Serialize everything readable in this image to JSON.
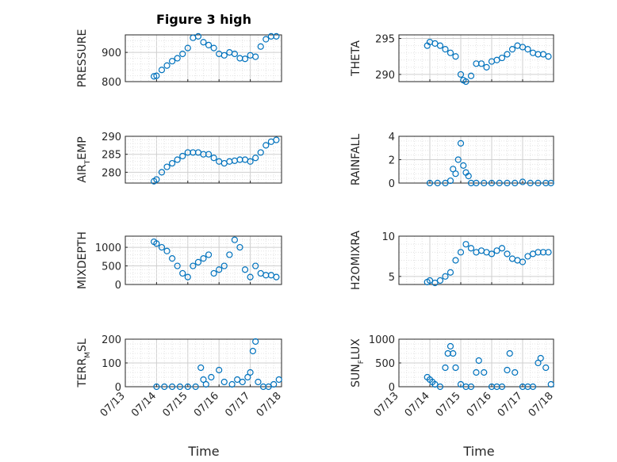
{
  "figure": {
    "title": "Figure 3 high",
    "xlabel": "Time"
  },
  "style": {
    "marker_color": "#0072BD",
    "axis_color": "#262626",
    "grid_color": "#b0b0b0"
  },
  "chart_data": [
    {
      "type": "scatter",
      "ylabel": "PRESSURE",
      "yticks": [
        800,
        900
      ],
      "ylim": [
        800,
        960
      ],
      "xlim": [
        "07/13",
        "07/18"
      ],
      "xticks": [
        "07/13",
        "07/14",
        "07/15",
        "07/16",
        "07/17",
        "07/18"
      ],
      "show_xticklabels": false,
      "grid": true,
      "series": [
        {
          "x": [
            "07/13 22:00",
            "07/14 00:00",
            "07/14 04:00",
            "07/14 08:00",
            "07/14 12:00",
            "07/14 16:00",
            "07/14 20:00",
            "07/15 00:00",
            "07/15 04:00",
            "07/15 08:00",
            "07/15 12:00",
            "07/15 16:00",
            "07/15 20:00",
            "07/16 00:00",
            "07/16 04:00",
            "07/16 08:00",
            "07/16 12:00",
            "07/16 16:00",
            "07/16 20:00",
            "07/17 00:00",
            "07/17 04:00",
            "07/17 08:00",
            "07/17 12:00",
            "07/17 16:00",
            "07/17 20:00"
          ],
          "y": [
            818,
            820,
            840,
            855,
            870,
            880,
            895,
            915,
            950,
            955,
            935,
            925,
            915,
            895,
            890,
            900,
            895,
            880,
            878,
            890,
            885,
            920,
            945,
            955,
            955
          ]
        }
      ]
    },
    {
      "type": "scatter",
      "ylabel": "THETA",
      "yticks": [
        290,
        295
      ],
      "ylim": [
        289,
        295.5
      ],
      "xlim": [
        "07/13",
        "07/18"
      ],
      "xticks": [
        "07/13",
        "07/14",
        "07/15",
        "07/16",
        "07/17",
        "07/18"
      ],
      "show_xticklabels": false,
      "grid": true,
      "series": [
        {
          "x": [
            "07/13 22:00",
            "07/14 00:00",
            "07/14 04:00",
            "07/14 08:00",
            "07/14 12:00",
            "07/14 16:00",
            "07/14 20:00",
            "07/15 00:00",
            "07/15 02:00",
            "07/15 04:00",
            "07/15 08:00",
            "07/15 12:00",
            "07/15 16:00",
            "07/15 20:00",
            "07/16 00:00",
            "07/16 04:00",
            "07/16 08:00",
            "07/16 12:00",
            "07/16 16:00",
            "07/16 20:00",
            "07/17 00:00",
            "07/17 04:00",
            "07/17 08:00",
            "07/17 12:00",
            "07/17 16:00",
            "07/17 20:00"
          ],
          "y": [
            294,
            294.5,
            294.3,
            294,
            293.5,
            293,
            292.5,
            290,
            289.2,
            289,
            289.8,
            291.5,
            291.5,
            291,
            291.8,
            292,
            292.3,
            292.8,
            293.5,
            294,
            293.8,
            293.5,
            293,
            292.8,
            292.8,
            292.5
          ]
        }
      ]
    },
    {
      "type": "scatter",
      "ylabel": "AIR_TEMP",
      "yticks": [
        280,
        285,
        290
      ],
      "ylim": [
        277,
        290
      ],
      "xlim": [
        "07/13",
        "07/18"
      ],
      "xticks": [
        "07/13",
        "07/14",
        "07/15",
        "07/16",
        "07/17",
        "07/18"
      ],
      "show_xticklabels": false,
      "grid": true,
      "series": [
        {
          "x": [
            "07/13 22:00",
            "07/14 00:00",
            "07/14 04:00",
            "07/14 08:00",
            "07/14 12:00",
            "07/14 16:00",
            "07/14 20:00",
            "07/15 00:00",
            "07/15 04:00",
            "07/15 08:00",
            "07/15 12:00",
            "07/15 16:00",
            "07/15 20:00",
            "07/16 00:00",
            "07/16 04:00",
            "07/16 08:00",
            "07/16 12:00",
            "07/16 16:00",
            "07/16 20:00",
            "07/17 00:00",
            "07/17 04:00",
            "07/17 08:00",
            "07/17 12:00",
            "07/17 16:00",
            "07/17 20:00"
          ],
          "y": [
            277.5,
            278,
            280,
            281.5,
            282.5,
            283.5,
            284.5,
            285.5,
            285.5,
            285.5,
            285,
            285,
            284,
            283,
            282.5,
            283,
            283.2,
            283.5,
            283.5,
            283,
            284,
            285.5,
            287.5,
            288.5,
            289
          ]
        }
      ]
    },
    {
      "type": "scatter",
      "ylabel": "RAINFALL",
      "yticks": [
        0,
        2,
        4
      ],
      "ylim": [
        0,
        4
      ],
      "xlim": [
        "07/13",
        "07/18"
      ],
      "xticks": [
        "07/13",
        "07/14",
        "07/15",
        "07/16",
        "07/17",
        "07/18"
      ],
      "show_xticklabels": false,
      "grid": true,
      "series": [
        {
          "x": [
            "07/14 00:00",
            "07/14 06:00",
            "07/14 12:00",
            "07/14 16:00",
            "07/14 18:00",
            "07/14 20:00",
            "07/14 22:00",
            "07/15 00:00",
            "07/15 02:00",
            "07/15 04:00",
            "07/15 06:00",
            "07/15 08:00",
            "07/15 12:00",
            "07/15 18:00",
            "07/16 00:00",
            "07/16 06:00",
            "07/16 12:00",
            "07/16 18:00",
            "07/17 00:00",
            "07/17 06:00",
            "07/17 12:00",
            "07/17 18:00",
            "07/17 22:00"
          ],
          "y": [
            0,
            0,
            0,
            0.2,
            1.2,
            0.8,
            2,
            3.4,
            1.5,
            0.9,
            0.6,
            0,
            0,
            0,
            0,
            0,
            0,
            0,
            0.1,
            0,
            0,
            0,
            0
          ]
        }
      ]
    },
    {
      "type": "scatter",
      "ylabel": "MIXDEPTH",
      "yticks": [
        0,
        500,
        1000
      ],
      "ylim": [
        0,
        1300
      ],
      "xlim": [
        "07/13",
        "07/18"
      ],
      "xticks": [
        "07/13",
        "07/14",
        "07/15",
        "07/16",
        "07/17",
        "07/18"
      ],
      "show_xticklabels": false,
      "grid": true,
      "series": [
        {
          "x": [
            "07/13 22:00",
            "07/14 00:00",
            "07/14 04:00",
            "07/14 08:00",
            "07/14 12:00",
            "07/14 16:00",
            "07/14 20:00",
            "07/15 00:00",
            "07/15 04:00",
            "07/15 08:00",
            "07/15 12:00",
            "07/15 16:00",
            "07/15 20:00",
            "07/16 00:00",
            "07/16 04:00",
            "07/16 08:00",
            "07/16 12:00",
            "07/16 16:00",
            "07/16 20:00",
            "07/17 00:00",
            "07/17 04:00",
            "07/17 08:00",
            "07/17 12:00",
            "07/17 16:00",
            "07/17 20:00"
          ],
          "y": [
            1150,
            1100,
            1000,
            900,
            700,
            500,
            300,
            200,
            500,
            600,
            700,
            800,
            300,
            400,
            500,
            800,
            1200,
            1000,
            400,
            200,
            500,
            300,
            250,
            250,
            200
          ]
        }
      ]
    },
    {
      "type": "scatter",
      "ylabel": "H2OMIXRA",
      "yticks": [
        5,
        10
      ],
      "ylim": [
        4,
        10
      ],
      "xlim": [
        "07/13",
        "07/18"
      ],
      "xticks": [
        "07/13",
        "07/14",
        "07/15",
        "07/16",
        "07/17",
        "07/18"
      ],
      "show_xticklabels": false,
      "grid": true,
      "series": [
        {
          "x": [
            "07/13 22:00",
            "07/14 00:00",
            "07/14 04:00",
            "07/14 08:00",
            "07/14 12:00",
            "07/14 16:00",
            "07/14 20:00",
            "07/15 00:00",
            "07/15 04:00",
            "07/15 08:00",
            "07/15 12:00",
            "07/15 16:00",
            "07/15 20:00",
            "07/16 00:00",
            "07/16 04:00",
            "07/16 08:00",
            "07/16 12:00",
            "07/16 16:00",
            "07/16 20:00",
            "07/17 00:00",
            "07/17 04:00",
            "07/17 08:00",
            "07/17 12:00",
            "07/17 16:00",
            "07/17 20:00"
          ],
          "y": [
            4.3,
            4.5,
            4.2,
            4.5,
            5,
            5.5,
            7,
            8,
            9,
            8.5,
            8,
            8.2,
            8,
            7.8,
            8.2,
            8.5,
            7.8,
            7.2,
            7,
            6.8,
            7.5,
            7.8,
            8,
            8,
            8
          ]
        }
      ]
    },
    {
      "type": "scatter",
      "ylabel": "TERR_MSL",
      "yticks": [
        0,
        100,
        200
      ],
      "ylim": [
        0,
        200
      ],
      "xlim": [
        "07/13",
        "07/18"
      ],
      "xticks": [
        "07/13",
        "07/14",
        "07/15",
        "07/16",
        "07/17",
        "07/18"
      ],
      "show_xticklabels": true,
      "grid": true,
      "series": [
        {
          "x": [
            "07/14 00:00",
            "07/14 06:00",
            "07/14 12:00",
            "07/14 18:00",
            "07/15 00:00",
            "07/15 06:00",
            "07/15 10:00",
            "07/15 12:00",
            "07/15 14:00",
            "07/15 18:00",
            "07/16 00:00",
            "07/16 04:00",
            "07/16 10:00",
            "07/16 14:00",
            "07/16 18:00",
            "07/16 22:00",
            "07/17 00:00",
            "07/17 02:00",
            "07/17 04:00",
            "07/17 06:00",
            "07/17 10:00",
            "07/17 14:00",
            "07/17 18:00",
            "07/17 22:00"
          ],
          "y": [
            0,
            0,
            0,
            0,
            0,
            0,
            80,
            30,
            10,
            40,
            70,
            20,
            10,
            30,
            20,
            40,
            60,
            150,
            190,
            20,
            0,
            0,
            10,
            30
          ]
        }
      ]
    },
    {
      "type": "scatter",
      "ylabel": "SUN_FLUX",
      "yticks": [
        0,
        500,
        1000
      ],
      "ylim": [
        0,
        1000
      ],
      "xlim": [
        "07/13",
        "07/18"
      ],
      "xticks": [
        "07/13",
        "07/14",
        "07/15",
        "07/16",
        "07/17",
        "07/18"
      ],
      "show_xticklabels": true,
      "grid": true,
      "series": [
        {
          "x": [
            "07/13 22:00",
            "07/14 00:00",
            "07/14 02:00",
            "07/14 04:00",
            "07/14 08:00",
            "07/14 12:00",
            "07/14 14:00",
            "07/14 16:00",
            "07/14 18:00",
            "07/14 20:00",
            "07/15 00:00",
            "07/15 04:00",
            "07/15 08:00",
            "07/15 12:00",
            "07/15 14:00",
            "07/15 18:00",
            "07/16 00:00",
            "07/16 04:00",
            "07/16 08:00",
            "07/16 12:00",
            "07/16 14:00",
            "07/16 18:00",
            "07/17 00:00",
            "07/17 04:00",
            "07/17 08:00",
            "07/17 12:00",
            "07/17 14:00",
            "07/17 18:00",
            "07/17 22:00"
          ],
          "y": [
            200,
            150,
            100,
            50,
            0,
            400,
            700,
            850,
            700,
            400,
            50,
            0,
            0,
            300,
            550,
            300,
            0,
            0,
            0,
            350,
            700,
            300,
            0,
            0,
            0,
            500,
            600,
            400,
            50
          ]
        }
      ]
    }
  ]
}
